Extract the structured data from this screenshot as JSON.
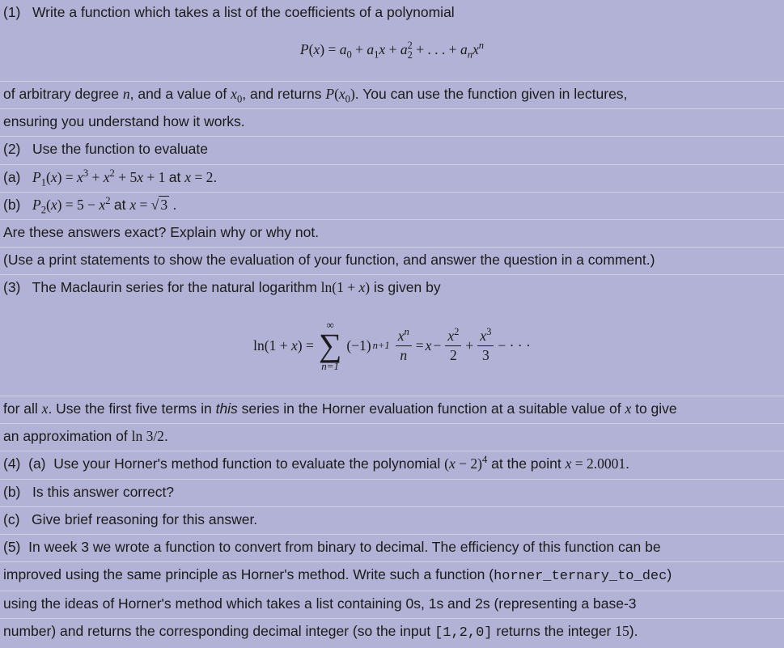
{
  "q1": {
    "label": "(1)",
    "text_before": "Write a function which takes a list of the coefficients of a polynomial",
    "formula_lhs": "P(x) = a",
    "formula_terms": [
      "a₀",
      "a₁x",
      "a₂²",
      "aₙxⁿ"
    ],
    "text_after_1": "of arbitrary degree ",
    "var_n": "n",
    "text_after_2": ", and a value of ",
    "var_x0": "x₀",
    "text_after_3": ", and returns ",
    "var_Px0": "P(x₀)",
    "text_after_4": ". You can use the function given in lectures,",
    "text_after_5": "ensuring you understand how it works."
  },
  "q2": {
    "label": "(2)",
    "text": "Use the function to evaluate",
    "a_label": "(a)",
    "a_poly": "P₁(x) = x³ + x² + 5x + 1",
    "a_at": " at ",
    "a_xval": "x = 2",
    "a_period": ".",
    "b_label": "(b)",
    "b_poly": "P₂(x) = 5 − x²",
    "b_at": " at ",
    "b_xval_pre": "x = ",
    "b_radicand": "3",
    "b_period": ".",
    "exact_q": "Are these answers exact? Explain why or why not.",
    "note": "(Use a print statements to show the evaluation of your function, and answer the question in a comment.)"
  },
  "q3": {
    "label": "(3)",
    "text": "The Maclaurin series for the natural logarithm ",
    "fn": "ln(1 + x)",
    "text_tail": " is given by",
    "sum_lower": "n=1",
    "sum_upper": "∞",
    "after_1": "for all ",
    "var_x": "x",
    "after_2": ". Use the first five terms in ",
    "this_word": "this",
    "after_3": " series in the Horner evaluation function at a suitable value of ",
    "after_4": " to give",
    "after_5": "an approximation of ",
    "target": "ln 3/2",
    "after_6": "."
  },
  "q4": {
    "label": "(4)",
    "a_label": "(a)",
    "a_text_1": "Use your Horner's method function to evaluate the polynomial ",
    "a_poly": "(x − 2)⁴",
    "a_text_2": " at the point ",
    "a_xval": "x = 2.0001",
    "a_period": ".",
    "b_label": "(b)",
    "b_text": "Is this answer correct?",
    "c_label": "(c)",
    "c_text": "Give brief reasoning for this answer."
  },
  "q5": {
    "label": "(5)",
    "text_1": "In week 3 we wrote a function to convert from binary to decimal. The efficiency of this function can be",
    "text_2": "improved using the same principle as Horner's method. Write such a function (",
    "fn_name": "horner_ternary_to_dec",
    "text_3": ")",
    "text_4": "using the ideas of Horner's method which takes a list containing 0s, 1s and 2s (representing a base-3",
    "text_5": "number) and returns the corresponding decimal integer (so the input ",
    "input_ex": "[1,2,0]",
    "text_6": " returns the integer ",
    "output_ex": "15",
    "text_7": ")."
  }
}
